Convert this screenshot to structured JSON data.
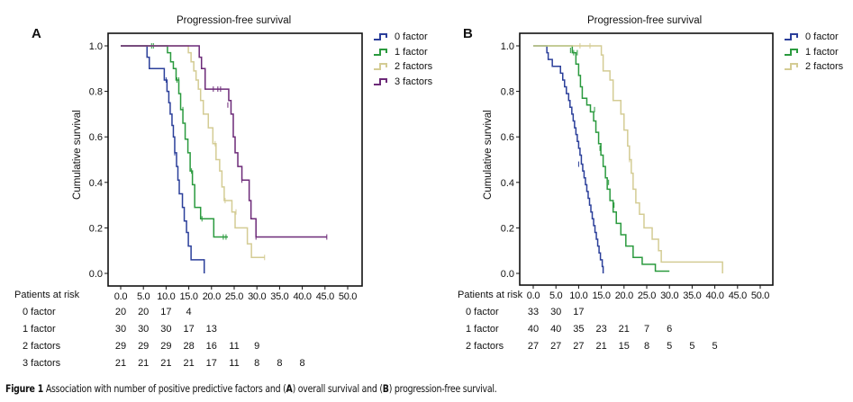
{
  "caption": {
    "prefix": "Figure 1",
    "text_1": " Association with number of positive predictive factors and (",
    "a": "A",
    "text_2": ") overall survival and (",
    "b": "B",
    "text_3": ") progression-free survival."
  },
  "chart_data": [
    {
      "panel": "A",
      "type": "line",
      "subtype": "kaplan-meier step",
      "title": "Progression-free survival",
      "xlabel": "",
      "ylabel": "Cumulative survival",
      "xlim": [
        0,
        52
      ],
      "ylim": [
        -0.05,
        1.05
      ],
      "x_ticks": [
        "0.0",
        "5.0",
        "10.0",
        "15.0",
        "20.0",
        "25.0",
        "30.0",
        "35.0",
        "40.0",
        "45.0",
        "50.0"
      ],
      "y_ticks": [
        "0.0",
        "0.2",
        "0.4",
        "0.6",
        "0.8",
        "1.0"
      ],
      "legend_position": "right",
      "series": [
        {
          "name": "0 factor",
          "color": "#2b3f9a",
          "steps": [
            [
              0,
              1.0
            ],
            [
              5.8,
              0.95
            ],
            [
              6.3,
              0.9
            ],
            [
              9.6,
              0.85
            ],
            [
              10.2,
              0.8
            ],
            [
              10.6,
              0.75
            ],
            [
              10.9,
              0.7
            ],
            [
              11.3,
              0.65
            ],
            [
              11.6,
              0.6
            ],
            [
              11.9,
              0.53
            ],
            [
              12.3,
              0.47
            ],
            [
              12.6,
              0.41
            ],
            [
              12.9,
              0.35
            ],
            [
              13.6,
              0.29
            ],
            [
              14.0,
              0.23
            ],
            [
              14.5,
              0.18
            ],
            [
              14.9,
              0.12
            ],
            [
              15.5,
              0.06
            ],
            [
              18.4,
              0.0
            ]
          ],
          "censored": [
            [
              10.0,
              0.85
            ],
            [
              11.9,
              0.53
            ]
          ]
        },
        {
          "name": "1 factor",
          "color": "#2a9a3e",
          "steps": [
            [
              0,
              1.0
            ],
            [
              10.3,
              0.97
            ],
            [
              11.0,
              0.93
            ],
            [
              11.6,
              0.9
            ],
            [
              12.2,
              0.85
            ],
            [
              12.8,
              0.79
            ],
            [
              13.2,
              0.72
            ],
            [
              13.7,
              0.66
            ],
            [
              14.2,
              0.59
            ],
            [
              14.8,
              0.53
            ],
            [
              15.3,
              0.45
            ],
            [
              15.8,
              0.39
            ],
            [
              16.3,
              0.29
            ],
            [
              17.6,
              0.24
            ],
            [
              20.5,
              0.16
            ],
            [
              23.6,
              0.16
            ]
          ],
          "censored": [
            [
              6.8,
              1.0
            ],
            [
              7.2,
              1.0
            ],
            [
              12.4,
              0.85
            ],
            [
              12.8,
              0.85
            ],
            [
              13.7,
              0.72
            ],
            [
              15.6,
              0.45
            ],
            [
              17.9,
              0.24
            ],
            [
              22.6,
              0.16
            ],
            [
              23.2,
              0.16
            ]
          ]
        },
        {
          "name": "2 factors",
          "color": "#d4cc94",
          "steps": [
            [
              0,
              1.0
            ],
            [
              14.9,
              0.97
            ],
            [
              15.5,
              0.93
            ],
            [
              16.1,
              0.89
            ],
            [
              16.6,
              0.85
            ],
            [
              17.1,
              0.81
            ],
            [
              17.6,
              0.76
            ],
            [
              18.2,
              0.7
            ],
            [
              19.3,
              0.64
            ],
            [
              20.3,
              0.57
            ],
            [
              21.0,
              0.5
            ],
            [
              21.8,
              0.45
            ],
            [
              22.3,
              0.38
            ],
            [
              22.8,
              0.32
            ],
            [
              24.5,
              0.27
            ],
            [
              25.2,
              0.2
            ],
            [
              27.9,
              0.13
            ],
            [
              28.8,
              0.07
            ],
            [
              31.7,
              0.07
            ]
          ],
          "censored": [
            [
              20.8,
              0.57
            ],
            [
              23.0,
              0.32
            ],
            [
              25.4,
              0.27
            ],
            [
              31.7,
              0.07
            ]
          ]
        },
        {
          "name": "3 factors",
          "color": "#6c2a78",
          "steps": [
            [
              0,
              1.0
            ],
            [
              17.3,
              0.95
            ],
            [
              17.8,
              0.9
            ],
            [
              18.6,
              0.81
            ],
            [
              23.8,
              0.76
            ],
            [
              24.3,
              0.7
            ],
            [
              24.8,
              0.6
            ],
            [
              25.2,
              0.53
            ],
            [
              25.8,
              0.47
            ],
            [
              26.7,
              0.41
            ],
            [
              28.3,
              0.32
            ],
            [
              28.7,
              0.24
            ],
            [
              29.8,
              0.16
            ],
            [
              45.4,
              0.16
            ]
          ],
          "censored": [
            [
              20.4,
              0.81
            ],
            [
              21.4,
              0.81
            ],
            [
              22.0,
              0.81
            ],
            [
              23.6,
              0.74
            ],
            [
              26.7,
              0.41
            ],
            [
              29.8,
              0.16
            ],
            [
              45.4,
              0.16
            ]
          ]
        }
      ],
      "patients_at_risk": {
        "label": "Patients at risk",
        "rows": [
          {
            "name": "0 factor",
            "values": [
              "20",
              "20",
              "17",
              "4"
            ]
          },
          {
            "name": "1 factor",
            "values": [
              "30",
              "30",
              "30",
              "17",
              "13"
            ]
          },
          {
            "name": "2 factors",
            "values": [
              "29",
              "29",
              "29",
              "28",
              "16",
              "11",
              "9"
            ]
          },
          {
            "name": "3 factors",
            "values": [
              "21",
              "21",
              "21",
              "21",
              "17",
              "11",
              "8",
              "8",
              "8"
            ]
          }
        ]
      }
    },
    {
      "panel": "B",
      "type": "line",
      "subtype": "kaplan-meier step",
      "title": "Progression-free survival",
      "xlabel": "",
      "ylabel": "Cumulative survival",
      "xlim": [
        -3,
        53
      ],
      "ylim": [
        -0.05,
        1.05
      ],
      "x_ticks": [
        "0.0",
        "5.0",
        "10.0",
        "15.0",
        "20.0",
        "25.0",
        "30.0",
        "35.0",
        "40.0",
        "45.0",
        "50.0"
      ],
      "y_ticks": [
        "0.0",
        "0.2",
        "0.4",
        "0.6",
        "0.8",
        "1.0"
      ],
      "legend_position": "right",
      "series": [
        {
          "name": "0 factor",
          "color": "#2b3f9a",
          "steps": [
            [
              0,
              1.0
            ],
            [
              3.0,
              0.97
            ],
            [
              3.3,
              0.94
            ],
            [
              4.2,
              0.91
            ],
            [
              6.0,
              0.88
            ],
            [
              6.5,
              0.85
            ],
            [
              6.9,
              0.82
            ],
            [
              7.3,
              0.79
            ],
            [
              7.8,
              0.76
            ],
            [
              8.1,
              0.73
            ],
            [
              8.5,
              0.7
            ],
            [
              8.8,
              0.67
            ],
            [
              9.1,
              0.64
            ],
            [
              9.4,
              0.61
            ],
            [
              9.7,
              0.58
            ],
            [
              10.0,
              0.55
            ],
            [
              10.3,
              0.52
            ],
            [
              10.6,
              0.48
            ],
            [
              10.9,
              0.45
            ],
            [
              11.2,
              0.42
            ],
            [
              11.5,
              0.39
            ],
            [
              11.8,
              0.36
            ],
            [
              12.1,
              0.33
            ],
            [
              12.4,
              0.3
            ],
            [
              12.7,
              0.27
            ],
            [
              13.0,
              0.24
            ],
            [
              13.3,
              0.21
            ],
            [
              13.6,
              0.18
            ],
            [
              13.9,
              0.15
            ],
            [
              14.2,
              0.12
            ],
            [
              14.5,
              0.09
            ],
            [
              14.8,
              0.06
            ],
            [
              15.2,
              0.03
            ],
            [
              15.4,
              0.0
            ]
          ],
          "censored": [
            [
              10.0,
              0.48
            ]
          ]
        },
        {
          "name": "1 factor",
          "color": "#2a9a3e",
          "steps": [
            [
              0,
              1.0
            ],
            [
              8.6,
              0.97
            ],
            [
              9.4,
              0.92
            ],
            [
              10.0,
              0.87
            ],
            [
              10.4,
              0.82
            ],
            [
              10.8,
              0.77
            ],
            [
              11.8,
              0.74
            ],
            [
              12.6,
              0.71
            ],
            [
              13.3,
              0.67
            ],
            [
              13.8,
              0.62
            ],
            [
              14.4,
              0.57
            ],
            [
              14.9,
              0.52
            ],
            [
              15.4,
              0.47
            ],
            [
              15.9,
              0.42
            ],
            [
              16.3,
              0.37
            ],
            [
              16.9,
              0.32
            ],
            [
              17.6,
              0.27
            ],
            [
              18.3,
              0.22
            ],
            [
              19.3,
              0.17
            ],
            [
              20.4,
              0.12
            ],
            [
              22.0,
              0.07
            ],
            [
              24.0,
              0.04
            ],
            [
              26.9,
              0.01
            ],
            [
              30.0,
              0.01
            ]
          ],
          "censored": [
            [
              8.2,
              0.98
            ],
            [
              8.9,
              0.97
            ],
            [
              9.7,
              0.97
            ],
            [
              13.5,
              0.72
            ],
            [
              14.7,
              0.55
            ],
            [
              16.6,
              0.4
            ],
            [
              17.8,
              0.3
            ]
          ]
        },
        {
          "name": "2 factors",
          "color": "#d4cc94",
          "steps": [
            [
              0,
              1.0
            ],
            [
              15.0,
              0.96
            ],
            [
              15.4,
              0.89
            ],
            [
              16.9,
              0.85
            ],
            [
              17.6,
              0.76
            ],
            [
              19.3,
              0.7
            ],
            [
              20.0,
              0.63
            ],
            [
              20.8,
              0.56
            ],
            [
              21.2,
              0.5
            ],
            [
              21.6,
              0.44
            ],
            [
              22.0,
              0.37
            ],
            [
              22.6,
              0.31
            ],
            [
              23.4,
              0.26
            ],
            [
              24.4,
              0.2
            ],
            [
              26.2,
              0.15
            ],
            [
              27.6,
              0.1
            ],
            [
              28.2,
              0.05
            ],
            [
              41.6,
              0.05
            ],
            [
              41.7,
              0.0
            ]
          ],
          "censored": [
            [
              10.3,
              1.0
            ],
            [
              12.5,
              1.0
            ],
            [
              21.2,
              0.5
            ]
          ]
        }
      ],
      "patients_at_risk": {
        "label": "Patients at risk",
        "rows": [
          {
            "name": "0 factor",
            "values": [
              "33",
              "30",
              "17"
            ]
          },
          {
            "name": "1 factor",
            "values": [
              "40",
              "40",
              "35",
              "23",
              "21",
              "7",
              "6"
            ]
          },
          {
            "name": "2 factors",
            "values": [
              "27",
              "27",
              "27",
              "21",
              "15",
              "8",
              "5",
              "5",
              "5"
            ]
          }
        ]
      }
    }
  ]
}
